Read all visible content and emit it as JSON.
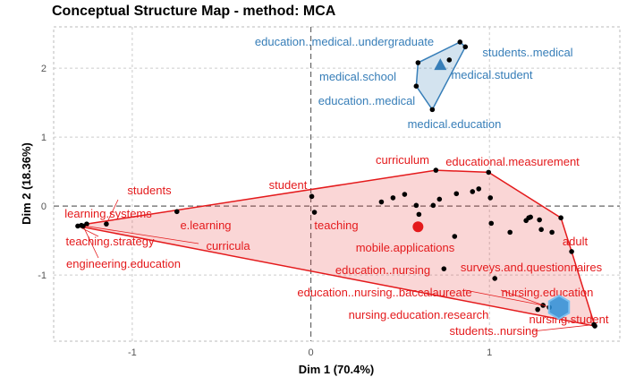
{
  "chart_data": {
    "type": "scatter",
    "title": "Conceptual Structure Map - method: MCA",
    "xlabel": "Dim 1 (70.4%)",
    "ylabel": "Dim 2 (18.36%)",
    "xlim": [
      -1.44,
      1.73
    ],
    "ylim": [
      -1.96,
      2.6
    ],
    "xticks": [
      -1,
      0,
      1
    ],
    "yticks": [
      -1,
      0,
      1,
      2
    ],
    "grid": true,
    "clusters": [
      {
        "color": "#377EB8",
        "centroid": {
          "x": 0.725,
          "y": 2.04,
          "marker": "triangle"
        },
        "points": [
          {
            "x": 0.835,
            "y": 2.38,
            "label": "education..medical..undergraduate"
          },
          {
            "x": 0.865,
            "y": 2.31,
            "label": "students..medical"
          },
          {
            "x": 0.775,
            "y": 2.12,
            "label": "medical.student"
          },
          {
            "x": 0.6,
            "y": 2.08,
            "label": "medical.school"
          },
          {
            "x": 0.59,
            "y": 1.74,
            "label": "education..medical"
          },
          {
            "x": 0.68,
            "y": 1.4,
            "label": "medical.education"
          }
        ]
      },
      {
        "color": "#E41A1C",
        "centroid": {
          "x": 0.6,
          "y": -0.3,
          "marker": "circle"
        },
        "points": [
          {
            "x": 0.7,
            "y": 0.52,
            "label": "curriculum"
          },
          {
            "x": 0.995,
            "y": 0.49,
            "label": "educational.measurement"
          },
          {
            "x": 0.005,
            "y": 0.14,
            "label": "student"
          },
          {
            "x": 0.02,
            "y": -0.09,
            "label": "teaching"
          },
          {
            "x": 0.805,
            "y": -0.44,
            "label": "mobile.applications"
          },
          {
            "x": 1.46,
            "y": -0.66,
            "label": "adult"
          },
          {
            "x": -1.145,
            "y": -0.26,
            "label": "students"
          },
          {
            "x": -1.255,
            "y": -0.26,
            "label": "learning.systems"
          },
          {
            "x": -0.75,
            "y": -0.08,
            "label": "e.learning"
          },
          {
            "x": -1.305,
            "y": -0.29,
            "label": "teaching.strategy"
          },
          {
            "x": -1.285,
            "y": -0.28,
            "label": "curricula"
          },
          {
            "x": -1.275,
            "y": -0.29,
            "label": "engineering.education"
          },
          {
            "x": 0.745,
            "y": -0.91,
            "label": "education..nursing"
          },
          {
            "x": 1.03,
            "y": -1.05,
            "label": "surveys.and.questionnaires"
          },
          {
            "x": 1.3,
            "y": -1.44,
            "label": "education..nursing..baccalaureate"
          },
          {
            "x": 1.335,
            "y": -1.47,
            "label": "nursing.education"
          },
          {
            "x": 1.27,
            "y": -1.5,
            "label": "nursing.education.research"
          },
          {
            "x": 1.59,
            "y": -1.74,
            "label": "nursing.student"
          },
          {
            "x": 1.585,
            "y": -1.72,
            "label": "students..nursing"
          },
          {
            "x": 0.395,
            "y": 0.06,
            "label": ""
          },
          {
            "x": 0.46,
            "y": 0.12,
            "label": ""
          },
          {
            "x": 0.525,
            "y": 0.17,
            "label": ""
          },
          {
            "x": 0.59,
            "y": 0.01,
            "label": ""
          },
          {
            "x": 0.605,
            "y": -0.12,
            "label": ""
          },
          {
            "x": 0.685,
            "y": 0.01,
            "label": ""
          },
          {
            "x": 0.72,
            "y": 0.1,
            "label": ""
          },
          {
            "x": 0.815,
            "y": 0.18,
            "label": ""
          },
          {
            "x": 0.905,
            "y": 0.21,
            "label": ""
          },
          {
            "x": 0.94,
            "y": 0.25,
            "label": ""
          },
          {
            "x": 1.005,
            "y": 0.12,
            "label": ""
          },
          {
            "x": 1.01,
            "y": -0.25,
            "label": ""
          },
          {
            "x": 1.115,
            "y": -0.38,
            "label": ""
          },
          {
            "x": 1.205,
            "y": -0.21,
            "label": ""
          },
          {
            "x": 1.22,
            "y": -0.17,
            "label": ""
          },
          {
            "x": 1.23,
            "y": -0.16,
            "label": ""
          },
          {
            "x": 1.28,
            "y": -0.2,
            "label": ""
          },
          {
            "x": 1.29,
            "y": -0.34,
            "label": ""
          },
          {
            "x": 1.35,
            "y": -0.38,
            "label": ""
          },
          {
            "x": 1.4,
            "y": -0.17,
            "label": ""
          }
        ]
      }
    ]
  }
}
